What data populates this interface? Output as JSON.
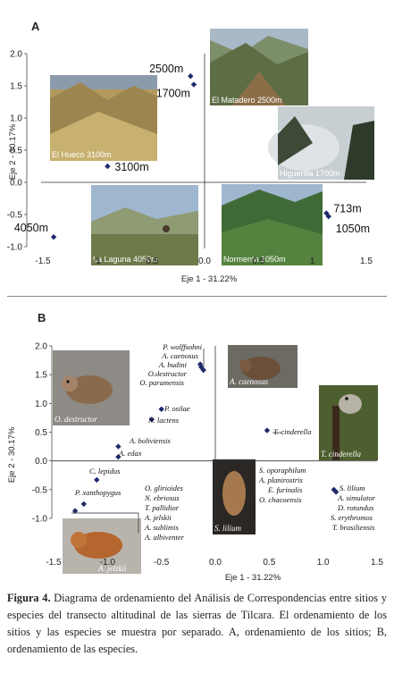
{
  "panel_a": {
    "letter": "A",
    "chart_data": {
      "type": "scatter",
      "xlabel": "Eje 1 - 31.22%",
      "ylabel": "Eje 2 - 30.17%",
      "xlim": [
        -1.5,
        1.5
      ],
      "ylim": [
        -1.0,
        2.0
      ],
      "x_ticks": [
        "-1.5",
        "-1",
        "-0.5",
        "0.0",
        "0.5",
        "1",
        "1.5"
      ],
      "x_tick_values": [
        -1.5,
        -1,
        -0.5,
        0,
        0.5,
        1,
        1.5
      ],
      "y_ticks": [
        "2.0",
        "1.5",
        "1.0",
        "0.5",
        "0.0",
        "-0.5",
        "-1.0"
      ],
      "y_tick_values": [
        2.0,
        1.5,
        1.0,
        0.5,
        0.0,
        -0.5,
        -1.0
      ],
      "points": [
        {
          "label": "2500m",
          "x": -0.13,
          "y": 1.65
        },
        {
          "label": "1700m",
          "x": -0.1,
          "y": 1.52
        },
        {
          "label": "3100m",
          "x": -0.9,
          "y": 0.25
        },
        {
          "label": "4050m",
          "x": -1.4,
          "y": -0.85
        },
        {
          "label": "713m",
          "x": 1.13,
          "y": -0.48
        },
        {
          "label": "1050m",
          "x": 1.15,
          "y": -0.53
        }
      ],
      "photos": [
        {
          "caption": "El Matadero 2500m"
        },
        {
          "caption": "El Hueco 3100m"
        },
        {
          "caption": "Higuerilla 1700m"
        },
        {
          "caption": "La Laguna 4050m"
        },
        {
          "caption": "Normenta 1050m"
        }
      ]
    }
  },
  "panel_b": {
    "letter": "B",
    "chart_data": {
      "type": "scatter",
      "xlabel": "Eje 1 - 31.22%",
      "ylabel": "Eje 2 - 30.17%",
      "xlim": [
        -1.5,
        1.5
      ],
      "ylim": [
        -1.0,
        2.0
      ],
      "x_ticks": [
        "-1.5",
        "-1.0",
        "-0.5",
        "0.0",
        "0.5",
        "1.0",
        "1.5"
      ],
      "x_tick_values": [
        -1.5,
        -1.0,
        -0.5,
        0,
        0.5,
        1.0,
        1.5
      ],
      "y_ticks": [
        "2.0",
        "1.5",
        "1.0",
        "0.5",
        "0.0",
        "-0.5",
        "-1.0"
      ],
      "y_tick_values": [
        2.0,
        1.5,
        1.0,
        0.5,
        0.0,
        -0.5,
        -1.0
      ],
      "points": [
        {
          "x": -0.14,
          "y": 1.68
        },
        {
          "x": -0.13,
          "y": 1.63
        },
        {
          "x": -0.11,
          "y": 1.58
        },
        {
          "x": -0.5,
          "y": 0.9
        },
        {
          "x": -0.59,
          "y": 0.72
        },
        {
          "x": -0.9,
          "y": 0.25
        },
        {
          "x": -0.9,
          "y": 0.07
        },
        {
          "x": -1.1,
          "y": -0.33
        },
        {
          "x": -1.22,
          "y": -0.75
        },
        {
          "x": -1.3,
          "y": -0.87
        },
        {
          "x": 0.48,
          "y": 0.53
        },
        {
          "x": 1.1,
          "y": -0.5
        },
        {
          "x": 1.12,
          "y": -0.54
        }
      ],
      "labels": [
        {
          "text": "P. wolffsohni"
        },
        {
          "text": "A. caenosus"
        },
        {
          "text": "A. budini"
        },
        {
          "text": "O.destructor",
          "roman": false
        },
        {
          "text": "O. paramensis"
        },
        {
          "text": "P. osilae"
        },
        {
          "text": "N. lactens"
        },
        {
          "text": "A. boliviensis"
        },
        {
          "text": "A. edax"
        },
        {
          "text": "C. lepidus"
        },
        {
          "text": "P. xanthopygus"
        },
        {
          "text": "O. glirioides"
        },
        {
          "text": "N. ebriosus"
        },
        {
          "text": "T. pallidior"
        },
        {
          "text": "A. jelskii"
        },
        {
          "text": "A. sublimis"
        },
        {
          "text": "A. albiventer"
        },
        {
          "text": "T. cinderella"
        },
        {
          "text": "S. oporaphilum"
        },
        {
          "text": "A. planirostris"
        },
        {
          "text": "E. furinalis"
        },
        {
          "text": "O. chacoensis"
        },
        {
          "text": "S. lilium"
        },
        {
          "text": "A. simulator"
        },
        {
          "text": "D. rotundus"
        },
        {
          "text": "S. erythromos"
        },
        {
          "text": "T. brasiliensis"
        }
      ],
      "photos": [
        {
          "caption": "O. destructor"
        },
        {
          "caption": "A. caenosus"
        },
        {
          "caption": "T. cinderella"
        },
        {
          "caption": "S. lilium"
        },
        {
          "caption": "A. jelskii"
        }
      ]
    }
  },
  "caption": {
    "label": "Figura 4.",
    "text": " Diagrama de ordenamiento del Análisis de Correspondencias entre sitios y especies del transecto altitudinal de las sierras de Tilcara. El ordenamiento de los sitios y las especies se muestra por separado. A, ordenamiento de los sitios; B, ordenamiento de las especies."
  },
  "colors": {
    "marker": "#1f2a6b",
    "axis": "#333333",
    "sky": "#9fb6cf",
    "grass": "#b9a46a",
    "forest": "#3f6a37",
    "rock": "#6e5a45",
    "fur": "#8a6a4c"
  }
}
